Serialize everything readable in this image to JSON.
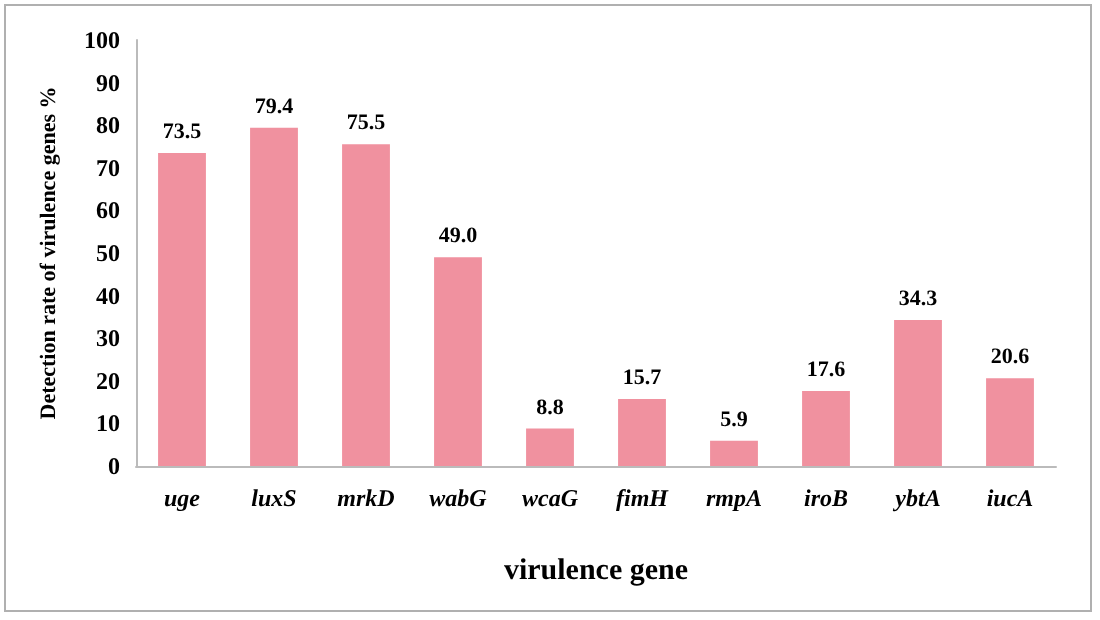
{
  "chart_data": {
    "type": "bar",
    "xlabel": "virulence gene",
    "ylabel": "Detection rate of virulence genes %",
    "categories": [
      "uge",
      "luxS",
      "mrkD",
      "wabG",
      "wcaG",
      "fimH",
      "rmpA",
      "iroB",
      "ybtA",
      "iucA"
    ],
    "values": [
      73.5,
      79.4,
      75.5,
      49.0,
      8.8,
      15.7,
      5.9,
      17.6,
      34.3,
      20.6
    ],
    "value_labels": [
      "73.5",
      "79.4",
      "75.5",
      "49.0",
      "8.8",
      "15.7",
      "5.9",
      "17.6",
      "34.3",
      "20.6"
    ],
    "color": "#f0919f",
    "ylim": [
      0,
      100
    ],
    "yticks": [
      0,
      10,
      20,
      30,
      40,
      50,
      60,
      70,
      80,
      90,
      100
    ],
    "grid": false
  }
}
